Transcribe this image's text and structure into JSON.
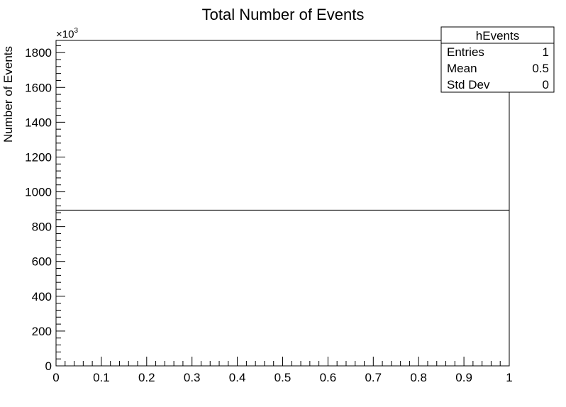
{
  "chart_data": {
    "type": "bar",
    "title": "Total Number of Events",
    "xlabel": "",
    "ylabel": "Number of Events",
    "y_exponent_label": "×10",
    "y_exponent_power": "3",
    "xlim": [
      0,
      1
    ],
    "ylim": [
      0,
      1870
    ],
    "x_ticks": [
      "0",
      "0.1",
      "0.2",
      "0.3",
      "0.4",
      "0.5",
      "0.6",
      "0.7",
      "0.8",
      "0.9",
      "1"
    ],
    "y_ticks": [
      "0",
      "200",
      "400",
      "600",
      "800",
      "1000",
      "1200",
      "1400",
      "1600",
      "1800"
    ],
    "bins": [
      {
        "low": 0,
        "high": 1,
        "value": 895
      }
    ],
    "grid": false,
    "stats_box": {
      "name": "hEvents",
      "rows": [
        {
          "label": "Entries",
          "value": "1"
        },
        {
          "label": "Mean",
          "value": "0.5"
        },
        {
          "label": "Std Dev",
          "value": "0"
        }
      ]
    }
  }
}
